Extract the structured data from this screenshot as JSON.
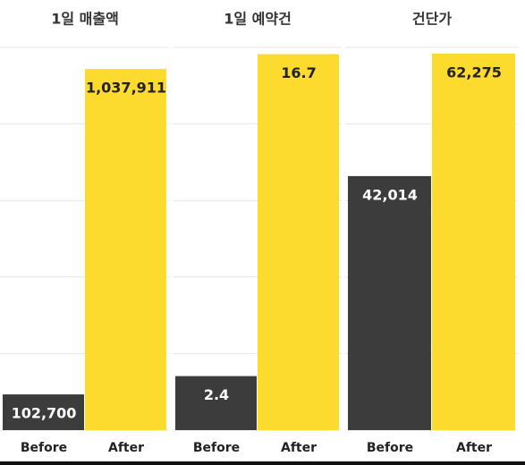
{
  "chart_data": [
    {
      "type": "bar",
      "title": "1일 매출액",
      "categories": [
        "Before",
        "After"
      ],
      "values": [
        102700,
        1037911
      ],
      "value_labels": [
        "102,700",
        "1,037,911"
      ],
      "colors": [
        "#3c3c3c",
        "#fdda2e"
      ],
      "ylim": [
        0,
        1100000
      ],
      "grid": true
    },
    {
      "type": "bar",
      "title": "1일 예약건",
      "categories": [
        "Before",
        "After"
      ],
      "values": [
        2.4,
        16.7
      ],
      "value_labels": [
        "2.4",
        "16.7"
      ],
      "colors": [
        "#3c3c3c",
        "#fdda2e"
      ],
      "ylim": [
        0,
        17
      ],
      "grid": true
    },
    {
      "type": "bar",
      "title": "건단가",
      "categories": [
        "Before",
        "After"
      ],
      "values": [
        42014,
        62275
      ],
      "value_labels": [
        "42,014",
        "62,275"
      ],
      "colors": [
        "#3c3c3c",
        "#fdda2e"
      ],
      "ylim": [
        0,
        63300
      ],
      "grid": true
    }
  ]
}
